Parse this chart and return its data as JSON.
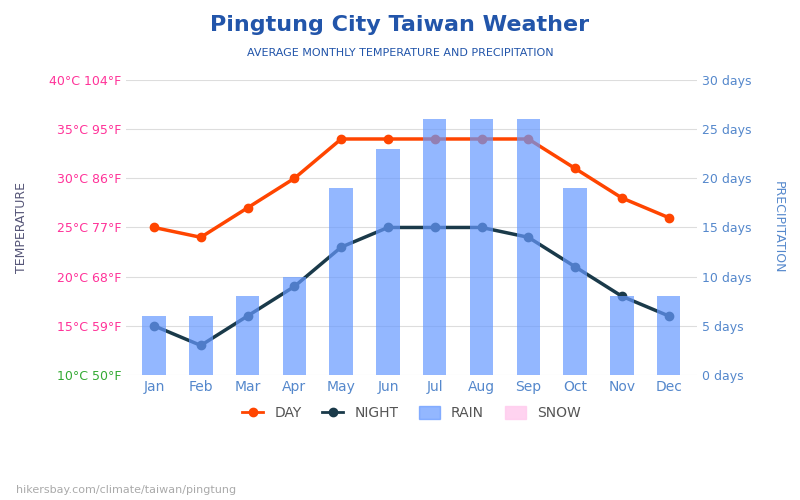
{
  "title": "Pingtung City Taiwan Weather",
  "subtitle": "AVERAGE MONTHLY TEMPERATURE AND PRECIPITATION",
  "months": [
    "Jan",
    "Feb",
    "Mar",
    "Apr",
    "May",
    "Jun",
    "Jul",
    "Aug",
    "Sep",
    "Oct",
    "Nov",
    "Dec"
  ],
  "day_temp": [
    25,
    24,
    27,
    30,
    34,
    34,
    34,
    34,
    34,
    31,
    28,
    26
  ],
  "night_temp": [
    15,
    13,
    16,
    19,
    23,
    25,
    25,
    25,
    24,
    21,
    18,
    16
  ],
  "rain_days": [
    6,
    6,
    8,
    10,
    19,
    23,
    26,
    26,
    26,
    19,
    8,
    8
  ],
  "bar_color": "#6699FF",
  "day_color": "#FF4500",
  "night_color": "#1a3a4a",
  "title_color": "#2255aa",
  "subtitle_color": "#2255aa",
  "right_tick_color": "#5588cc",
  "bottom_tick_color": "#5588cc",
  "temp_ylim": [
    10,
    40
  ],
  "rain_ylim": [
    0,
    30
  ],
  "temp_yticks": [
    10,
    15,
    20,
    25,
    30,
    35,
    40
  ],
  "temp_ytick_labels": [
    "10°C 50°F",
    "15°C 59°F",
    "20°C 68°F",
    "25°C 77°F",
    "30°C 86°F",
    "35°C 95°F",
    "40°C 104°F"
  ],
  "temp_ytick_colors": [
    "#33aa33",
    "#ff3399",
    "#ff3399",
    "#ff3399",
    "#ff3399",
    "#ff3399",
    "#ff3399"
  ],
  "rain_yticks": [
    0,
    5,
    10,
    15,
    20,
    25,
    30
  ],
  "rain_ytick_labels": [
    "0 days",
    "5 days",
    "10 days",
    "15 days",
    "20 days",
    "25 days",
    "30 days"
  ],
  "watermark": "hikersbay.com/climate/taiwan/pingtung",
  "legend_labels": [
    "DAY",
    "NIGHT",
    "RAIN",
    "SNOW"
  ]
}
